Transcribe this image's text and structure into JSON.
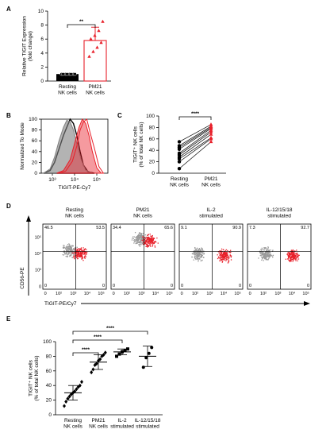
{
  "chart_data": [
    {
      "panel": "A",
      "type": "bar",
      "ylabel": "Relative TIGIT Expression\n(fold change)",
      "categories": [
        "Resting\nNK cells",
        "PM21\nNK cells"
      ],
      "values": [
        1.0,
        5.8
      ],
      "errors": [
        0.05,
        1.9
      ],
      "ylim": [
        0,
        10
      ],
      "yticks": [
        0,
        2,
        4,
        6,
        8,
        10
      ],
      "points": [
        [
          1,
          1,
          1,
          1,
          1,
          1,
          1,
          1
        ],
        [
          3.5,
          4.2,
          4.8,
          5.5,
          6.0,
          6.5,
          7.2,
          8.5
        ]
      ],
      "colors": [
        "#000000",
        "#e8202a"
      ],
      "significance": "**"
    },
    {
      "panel": "B",
      "type": "area",
      "xlabel": "TIGIT-PE-Cy7",
      "ylabel": "Normalized To Mode",
      "xticks": [
        "10³",
        "10⁴",
        "10⁵"
      ],
      "yticks": [
        0,
        20,
        40,
        60,
        80,
        100
      ],
      "ylim": [
        0,
        100
      ],
      "series": [
        {
          "color": "#000000",
          "x": [
            2.6,
            2.9,
            3.1,
            3.3,
            3.5,
            3.7,
            3.8,
            3.95,
            4.1,
            4.25,
            4.4,
            4.6,
            4.9
          ],
          "y": [
            0,
            5,
            20,
            45,
            70,
            90,
            100,
            92,
            70,
            40,
            15,
            3,
            0
          ]
        },
        {
          "color": "#808080",
          "x": [
            2.6,
            2.9,
            3.1,
            3.3,
            3.5,
            3.65,
            3.8,
            3.95,
            4.1,
            4.3,
            4.5,
            4.8
          ],
          "y": [
            0,
            8,
            30,
            60,
            85,
            98,
            95,
            80,
            55,
            25,
            6,
            0
          ]
        },
        {
          "color": "#e8202a",
          "x": [
            3.2,
            3.5,
            3.8,
            4.0,
            4.2,
            4.35,
            4.5,
            4.65,
            4.8,
            5.0,
            5.2
          ],
          "y": [
            0,
            5,
            25,
            55,
            85,
            100,
            92,
            70,
            40,
            10,
            0
          ]
        },
        {
          "color": "#e8202a",
          "x": [
            3.3,
            3.6,
            3.9,
            4.1,
            4.25,
            4.4,
            4.55,
            4.7,
            4.9,
            5.1,
            5.3
          ],
          "y": [
            0,
            4,
            22,
            50,
            80,
            95,
            100,
            75,
            45,
            12,
            0
          ]
        }
      ]
    },
    {
      "panel": "C",
      "type": "scatter",
      "ylabel": "TIGIT⁺ NK cells\n(% of total NK cells)",
      "categories": [
        "Resting\nNK cells",
        "PM21\nNK cells"
      ],
      "ylim": [
        0,
        100
      ],
      "yticks": [
        0,
        20,
        40,
        60,
        80,
        100
      ],
      "pairs": [
        [
          8,
          55
        ],
        [
          20,
          60
        ],
        [
          25,
          62
        ],
        [
          28,
          68
        ],
        [
          32,
          72
        ],
        [
          35,
          75
        ],
        [
          42,
          78
        ],
        [
          45,
          80
        ],
        [
          48,
          82
        ],
        [
          55,
          85
        ]
      ],
      "colors": [
        "#000000",
        "#e8202a"
      ],
      "significance": "****"
    },
    {
      "panel": "D",
      "type": "scatter",
      "xlabel": "TIGIT-PE/Cy7",
      "ylabel": "CD56-PE",
      "x_ticks": [
        "0",
        "10²",
        "10³",
        "10⁴",
        "10⁵"
      ],
      "y_ticks": [
        "0",
        "10³",
        "10⁴",
        "10⁵"
      ],
      "plots": [
        {
          "title": "Resting\nNK cells",
          "ul": "46.5",
          "ur": "53.5",
          "ll": "0",
          "lr": "0",
          "gray_center": [
            0.42,
            0.6
          ],
          "red_center": [
            0.58,
            0.55
          ]
        },
        {
          "title": "PM21\nNK cells",
          "ul": "34.4",
          "ur": "65.6",
          "ll": "0",
          "lr": "0",
          "gray_center": [
            0.45,
            0.78
          ],
          "red_center": [
            0.6,
            0.75
          ]
        },
        {
          "title": "IL-2\nstimulated",
          "ul": "9.1",
          "ur": "90.9",
          "ll": "0",
          "lr": "0",
          "gray_center": [
            0.3,
            0.55
          ],
          "red_center": [
            0.7,
            0.52
          ]
        },
        {
          "title": "IL-12/15/18\nstimulated",
          "ul": "7.3",
          "ur": "92.7",
          "ll": "0",
          "lr": "0",
          "gray_center": [
            0.28,
            0.55
          ],
          "red_center": [
            0.7,
            0.52
          ]
        }
      ]
    },
    {
      "panel": "E",
      "type": "scatter",
      "ylabel": "TIGIT⁺ NK cells\n(% of total NK cells)",
      "categories": [
        "Resting\nNK cells",
        "PM21\nNK cells",
        "IL-2\nstimulated",
        "IL-12/15/18\nstimulated"
      ],
      "ylim": [
        0,
        100
      ],
      "yticks": [
        0,
        20,
        40,
        60,
        80,
        100
      ],
      "means": [
        30,
        72,
        86,
        80
      ],
      "sd": [
        10,
        10,
        4,
        14
      ],
      "points": [
        [
          12,
          18,
          22,
          25,
          28,
          30,
          32,
          35,
          38,
          40,
          45
        ],
        [
          58,
          62,
          68,
          70,
          74,
          76,
          80,
          82,
          85
        ],
        [
          80,
          83,
          86,
          88,
          90
        ],
        [
          65,
          78,
          84,
          92
        ]
      ],
      "markers": [
        "diamond",
        "diamond",
        "square",
        "circle"
      ],
      "significance": [
        "****",
        "****",
        "****"
      ]
    }
  ],
  "panels": {
    "A": "A",
    "B": "B",
    "C": "C",
    "D": "D",
    "E": "E"
  }
}
